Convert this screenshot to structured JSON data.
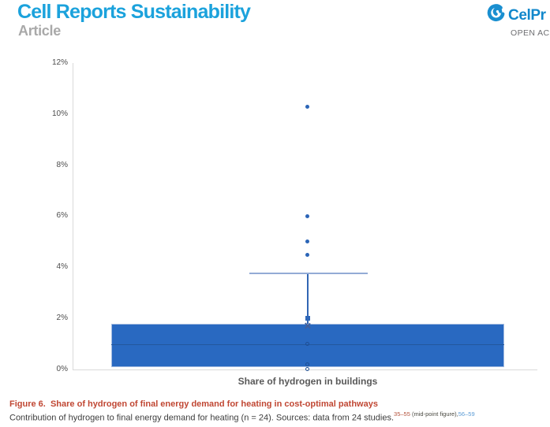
{
  "header": {
    "journal": "Cell Reports Sustainability",
    "article_type": "Article",
    "publisher_logo_text": "CelPr",
    "open_access_text": "OPEN AC"
  },
  "chart_data": {
    "type": "box",
    "title": "",
    "xlabel": "Share of hydrogen in buildings",
    "ylabel": "",
    "ylim": [
      0,
      12
    ],
    "unit": "percent",
    "grid": false,
    "y_tick_values": [
      0,
      2,
      4,
      6,
      8,
      10,
      12
    ],
    "y_ticks": [
      "0%",
      "2%",
      "4%",
      "6%",
      "8%",
      "10%",
      "12%"
    ],
    "box": {
      "q1": 0.1,
      "median": 1.0,
      "q3": 1.8,
      "mean": 1.7,
      "whisker_high": 3.8,
      "whisker_low": 0.1
    },
    "outliers": [
      10.3,
      6.0,
      5.0,
      4.5
    ],
    "point_on_whisker": 2.0,
    "inner_points": [
      1.0,
      0.2,
      0.0
    ],
    "n": 24
  },
  "caption": {
    "label": "Figure 6.",
    "title": "Share of hydrogen of final energy demand for heating in cost-optimal pathways",
    "body": "Contribution of hydrogen to final energy demand for heating (n = 24). Sources: data from 24 studies.",
    "ref_red": "35–55",
    "ref_note": " (mid-point figure),",
    "ref_blue": "56–59"
  },
  "colors": {
    "journal_blue": "#1ba2dc",
    "article_gray": "#a9a9a9",
    "logo_blue": "#1187cb",
    "box_fill": "#2969c1",
    "median_line": "#23579d",
    "whisker_cap": "#93abd6",
    "whisker_stem": "#3166b3",
    "outlier_dot": "#2b65b7",
    "axis_gray": "#d9d9d9",
    "tick_text": "#4d4d4d",
    "axis_title": "#595959",
    "caption_red": "#c04733"
  }
}
